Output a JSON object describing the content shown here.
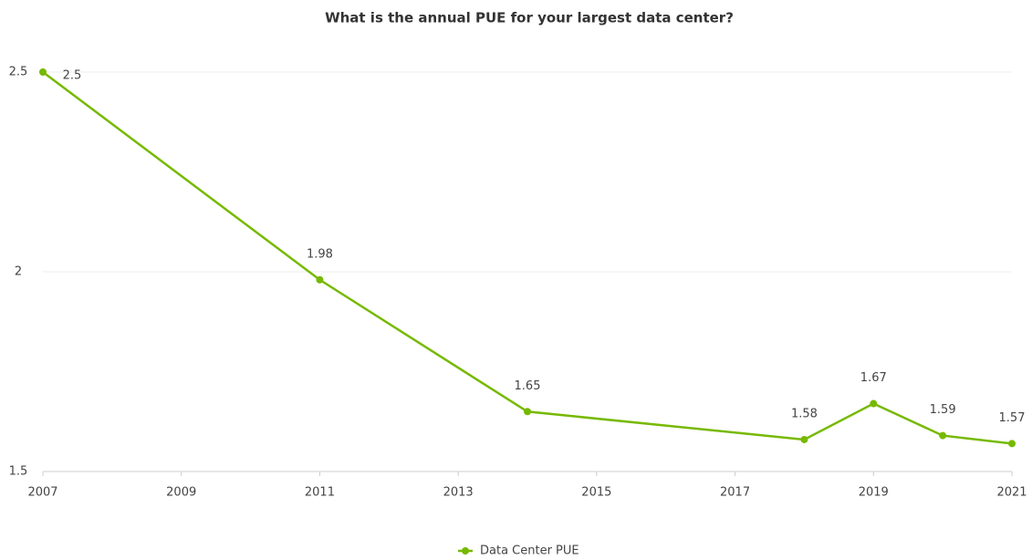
{
  "chart_data": {
    "type": "line",
    "title": "What is the annual PUE for your largest data center?",
    "x": [
      2007,
      2011,
      2014,
      2018,
      2019,
      2020,
      2021
    ],
    "series": [
      {
        "name": "Data Center PUE",
        "color": "#76b900",
        "values": [
          2.5,
          1.98,
          1.65,
          1.58,
          1.67,
          1.59,
          1.57
        ]
      }
    ],
    "xlim": [
      2007,
      2021
    ],
    "xticks": [
      2007,
      2009,
      2011,
      2013,
      2015,
      2017,
      2019,
      2021
    ],
    "ylim": [
      1.5,
      2.5
    ],
    "yticks": [
      1.5,
      2,
      2.5
    ],
    "grid": true,
    "legend": "bottom"
  }
}
